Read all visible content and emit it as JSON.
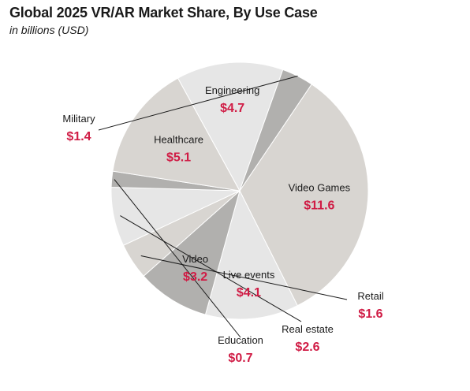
{
  "chart_data": {
    "type": "pie",
    "title": "Global 2025 VR/AR Market Share, By Use Case",
    "subtitle": "in billions (USD)",
    "slices": [
      {
        "label": "Video Games",
        "value": 11.6,
        "value_label": "$11.6",
        "color": "#d8d5d1"
      },
      {
        "label": "Live events",
        "value": 4.1,
        "value_label": "$4.1",
        "color": "#e6e6e6"
      },
      {
        "label": "Video",
        "value": 3.2,
        "value_label": "$3.2",
        "color": "#b1b0ae"
      },
      {
        "label": "Retail",
        "value": 1.6,
        "value_label": "$1.6",
        "color": "#d8d5d1"
      },
      {
        "label": "Real estate",
        "value": 2.6,
        "value_label": "$2.6",
        "color": "#e6e6e6"
      },
      {
        "label": "Education",
        "value": 0.7,
        "value_label": "$0.7",
        "color": "#b1b0ae"
      },
      {
        "label": "Healthcare",
        "value": 5.1,
        "value_label": "$5.1",
        "color": "#d8d5d1"
      },
      {
        "label": "Engineering",
        "value": 4.7,
        "value_label": "$4.7",
        "color": "#e6e6e6"
      },
      {
        "label": "Military",
        "value": 1.4,
        "value_label": "$1.4",
        "color": "#b1b0ae"
      }
    ],
    "label_color": "#d01c45"
  }
}
